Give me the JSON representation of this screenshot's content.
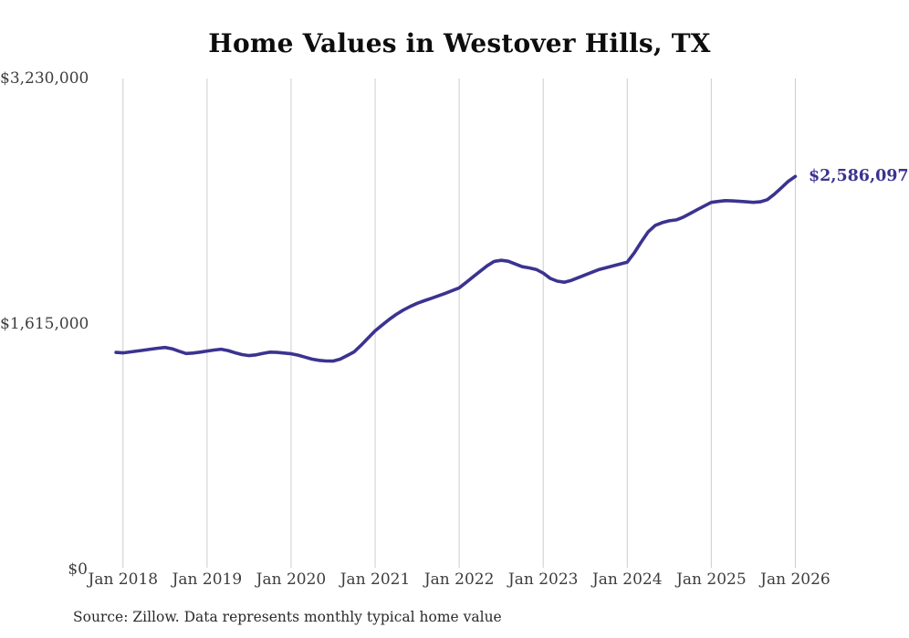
{
  "page": {
    "title": "Home Values in Westover Hills, TX",
    "source_note": "Source: Zillow. Data represents monthly typical home value"
  },
  "chart_data": {
    "type": "line",
    "title": "Home Values in Westover Hills, TX",
    "xlabel": "",
    "ylabel": "",
    "x_tick_labels": [
      "Jan 2018",
      "Jan 2019",
      "Jan 2020",
      "Jan 2021",
      "Jan 2022",
      "Jan 2023",
      "Jan 2024",
      "Jan 2025",
      "Jan 2026"
    ],
    "y_ticks": [
      {
        "label": "$3,230,000",
        "value": 3230000
      },
      {
        "label": "$1,615,000",
        "value": 1615000
      },
      {
        "label": "$0",
        "value": 0
      }
    ],
    "ylim": [
      0,
      3230000
    ],
    "grid": "vertical-only",
    "legend": "none",
    "end_label": "$2,586,097",
    "end_value": 2586097,
    "series": [
      {
        "name": "Monthly typical home value",
        "start_month": "2017-12",
        "interval": "monthly",
        "values": [
          1428000,
          1425000,
          1431000,
          1437000,
          1443000,
          1450000,
          1456000,
          1461000,
          1452000,
          1436000,
          1421000,
          1424000,
          1430000,
          1437000,
          1444000,
          1449000,
          1440000,
          1426000,
          1414000,
          1407000,
          1412000,
          1422000,
          1430000,
          1428000,
          1424000,
          1419000,
          1410000,
          1397000,
          1384000,
          1376000,
          1372000,
          1371000,
          1384000,
          1407000,
          1432000,
          1476000,
          1523000,
          1570000,
          1608000,
          1645000,
          1678000,
          1706000,
          1730000,
          1751000,
          1768000,
          1784000,
          1800000,
          1817000,
          1835000,
          1853000,
          1889000,
          1926000,
          1962000,
          1998000,
          2027000,
          2034000,
          2028000,
          2010000,
          1992000,
          1984000,
          1974000,
          1950000,
          1915000,
          1897000,
          1890000,
          1902000,
          1920000,
          1938000,
          1956000,
          1974000,
          1986000,
          1998000,
          2010000,
          2022000,
          2083000,
          2155000,
          2222000,
          2264000,
          2282000,
          2294000,
          2300000,
          2318000,
          2342000,
          2367000,
          2391000,
          2415000,
          2421000,
          2427000,
          2425000,
          2422000,
          2419000,
          2415000,
          2419000,
          2433000,
          2469000,
          2511000,
          2554000,
          2586097
        ]
      }
    ],
    "colors": {
      "line": "#3b3390",
      "grid": "#cccccc",
      "tick_text": "#3d3d3d",
      "title_text": "#0d0d0d",
      "end_label": "#3b3390"
    }
  }
}
